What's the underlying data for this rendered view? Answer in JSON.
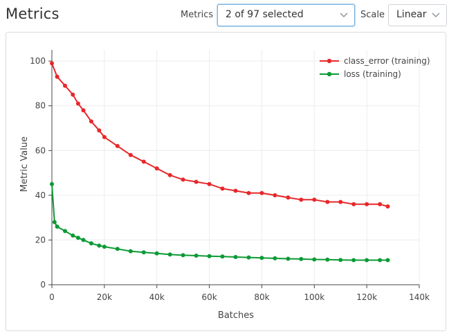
{
  "page": {
    "title": "Metrics"
  },
  "controls": {
    "metrics_label": "Metrics",
    "metrics_value": "2 of 97 selected",
    "scale_label": "Scale",
    "scale_value": "Linear"
  },
  "chart_data": {
    "type": "line",
    "xlabel": "Batches",
    "ylabel": "Metric Value",
    "xlim": [
      0,
      140000
    ],
    "ylim": [
      0,
      105
    ],
    "x_ticks": [
      0,
      20000,
      40000,
      60000,
      80000,
      100000,
      120000,
      140000
    ],
    "x_tick_labels": [
      "0",
      "20k",
      "40k",
      "60k",
      "80k",
      "100k",
      "120k",
      "140k"
    ],
    "y_ticks": [
      0,
      20,
      40,
      60,
      80,
      100
    ],
    "y_tick_labels": [
      "0",
      "20",
      "40",
      "60",
      "80",
      "100"
    ],
    "grid": true,
    "legend": "top-right",
    "series": [
      {
        "name": "class_error (training)",
        "color": "#e8272a",
        "x": [
          0,
          2000,
          5000,
          8000,
          10000,
          12000,
          15000,
          18000,
          20000,
          25000,
          30000,
          35000,
          40000,
          45000,
          50000,
          55000,
          60000,
          65000,
          70000,
          75000,
          80000,
          85000,
          90000,
          95000,
          100000,
          105000,
          110000,
          115000,
          120000,
          125000,
          128000
        ],
        "values": [
          99,
          93,
          89,
          85,
          81,
          78,
          73,
          69,
          66,
          62,
          58,
          55,
          52,
          49,
          47,
          46,
          45,
          43,
          42,
          41,
          41,
          40,
          39,
          38,
          38,
          37,
          37,
          36,
          36,
          36,
          35
        ]
      },
      {
        "name": "loss (training)",
        "color": "#0b9a35",
        "x": [
          0,
          1000,
          2000,
          5000,
          8000,
          10000,
          12000,
          15000,
          18000,
          20000,
          25000,
          30000,
          35000,
          40000,
          45000,
          50000,
          55000,
          60000,
          65000,
          70000,
          75000,
          80000,
          85000,
          90000,
          95000,
          100000,
          105000,
          110000,
          115000,
          120000,
          125000,
          128000
        ],
        "values": [
          45,
          28,
          26,
          24,
          22,
          21,
          20,
          18.5,
          17.5,
          17,
          16,
          15,
          14.5,
          14,
          13.5,
          13.2,
          13,
          12.8,
          12.6,
          12.4,
          12.2,
          12,
          11.8,
          11.6,
          11.5,
          11.3,
          11.2,
          11.1,
          11,
          11,
          11,
          11
        ]
      }
    ]
  }
}
